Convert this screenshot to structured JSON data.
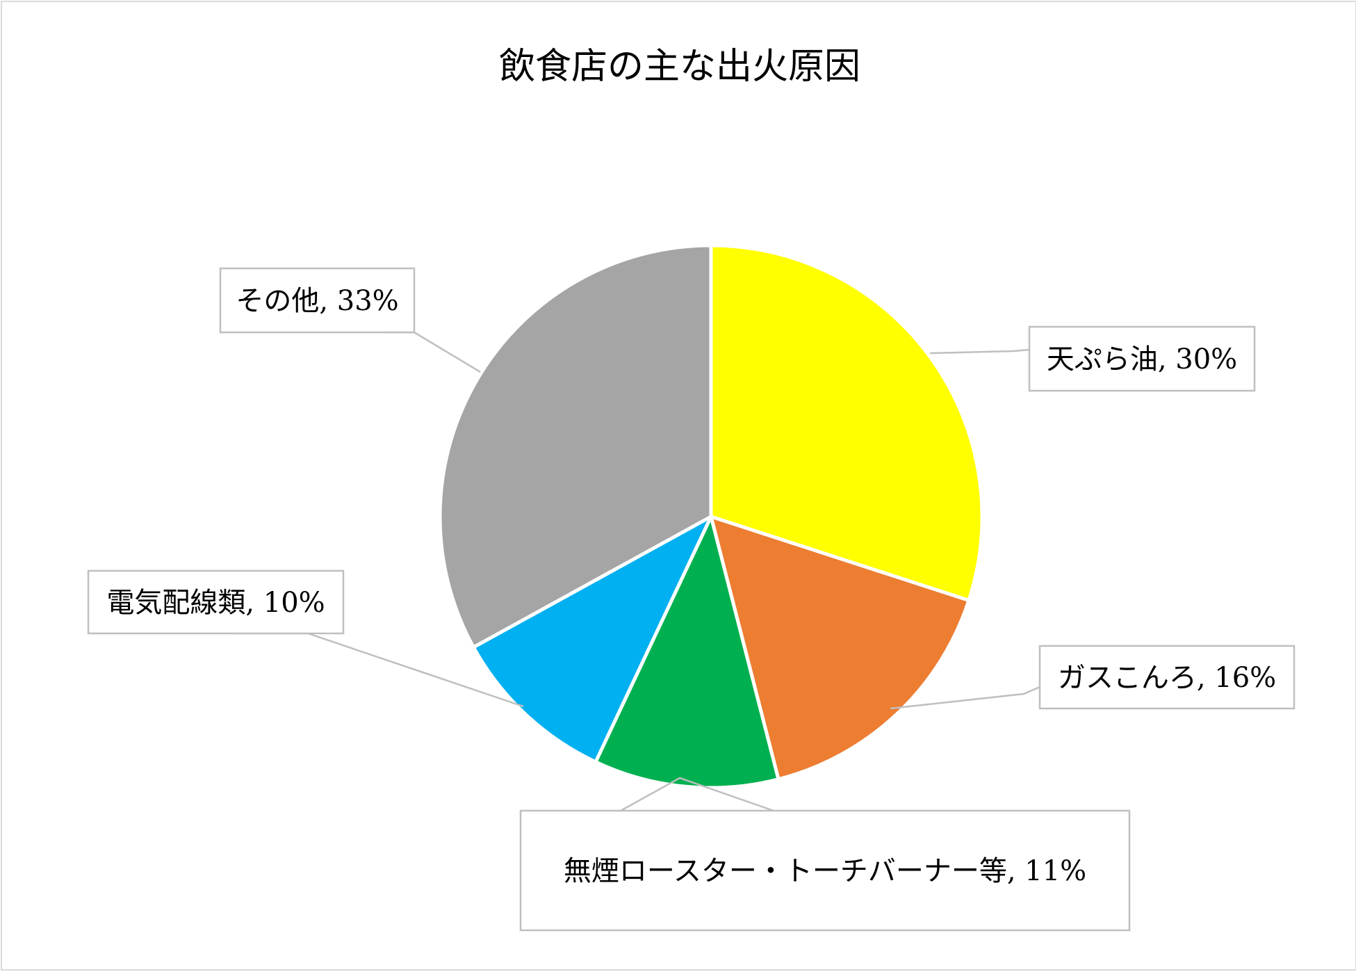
{
  "chart_data": {
    "type": "pie",
    "title": "飲食店の主な出火原因",
    "slices": [
      {
        "label": "天ぷら油",
        "value": 30,
        "value_label": "30%",
        "color": "#FFFF00"
      },
      {
        "label": "ガスこんろ",
        "value": 16,
        "value_label": "16%",
        "color": "#ED7D31"
      },
      {
        "label": "無煙ロースター・トーチバーナー等",
        "value": 11,
        "value_label": "11%",
        "color": "#00B050"
      },
      {
        "label": "電気配線類",
        "value": 10,
        "value_label": "10%",
        "color": "#00B0F0"
      },
      {
        "label": "その他",
        "value": 33,
        "value_label": "33%",
        "color": "#A5A5A5"
      }
    ],
    "start_angle": "12 o'clock",
    "direction": "clockwise",
    "legend": "none",
    "data_labels": "callouts with leader lines"
  }
}
